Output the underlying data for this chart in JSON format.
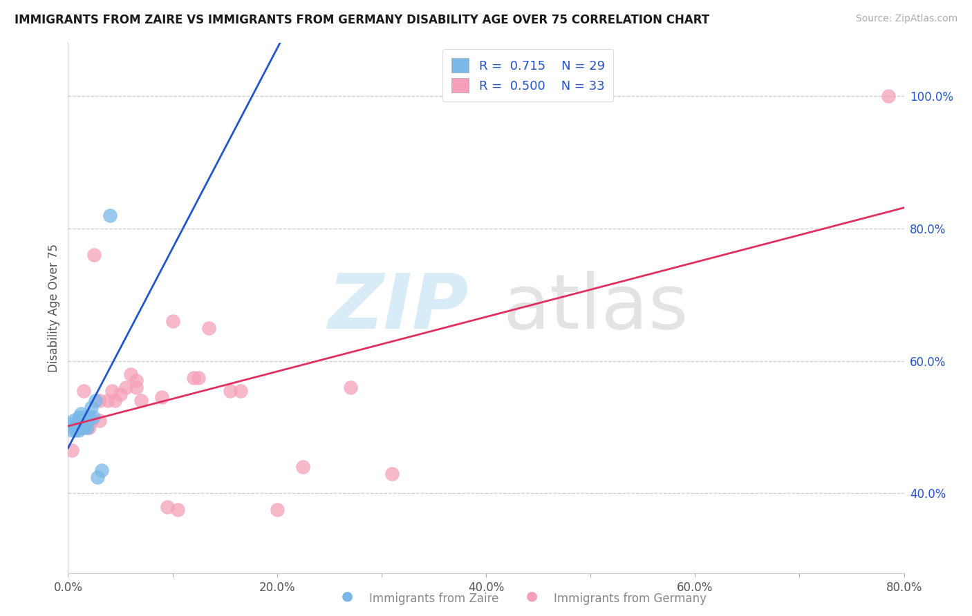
{
  "title": "IMMIGRANTS FROM ZAIRE VS IMMIGRANTS FROM GERMANY DISABILITY AGE OVER 75 CORRELATION CHART",
  "source": "Source: ZipAtlas.com",
  "ylabel": "Disability Age Over 75",
  "xmin": 0.0,
  "xmax": 0.8,
  "ymin": 0.28,
  "ymax": 1.08,
  "xtick_vals": [
    0.0,
    0.1,
    0.2,
    0.3,
    0.4,
    0.5,
    0.6,
    0.7,
    0.8
  ],
  "xtick_labels": [
    "0.0%",
    "",
    "20.0%",
    "",
    "40.0%",
    "",
    "60.0%",
    "",
    "80.0%"
  ],
  "ytick_vals": [
    0.4,
    0.6,
    0.8,
    1.0
  ],
  "ytick_labels": [
    "40.0%",
    "60.0%",
    "80.0%",
    "100.0%"
  ],
  "zaire_R": "0.715",
  "zaire_N": "29",
  "germany_R": "0.500",
  "germany_N": "33",
  "zaire_color": "#7ab8e8",
  "germany_color": "#f5a0b8",
  "zaire_line_color": "#2255cc",
  "germany_line_color": "#e03060",
  "zaire_x": [
    0.002,
    0.004,
    0.005,
    0.005,
    0.007,
    0.008,
    0.008,
    0.009,
    0.01,
    0.01,
    0.01,
    0.01,
    0.012,
    0.012,
    0.013,
    0.014,
    0.015,
    0.015,
    0.016,
    0.017,
    0.018,
    0.018,
    0.02,
    0.022,
    0.024,
    0.026,
    0.028,
    0.032,
    0.04
  ],
  "zaire_y": [
    0.505,
    0.495,
    0.5,
    0.51,
    0.495,
    0.5,
    0.505,
    0.5,
    0.495,
    0.5,
    0.51,
    0.515,
    0.505,
    0.52,
    0.5,
    0.51,
    0.515,
    0.5,
    0.505,
    0.51,
    0.5,
    0.51,
    0.515,
    0.53,
    0.515,
    0.54,
    0.425,
    0.435,
    0.82
  ],
  "germany_x": [
    0.004,
    0.01,
    0.012,
    0.015,
    0.018,
    0.02,
    0.022,
    0.025,
    0.03,
    0.03,
    0.038,
    0.042,
    0.045,
    0.05,
    0.055,
    0.06,
    0.065,
    0.065,
    0.07,
    0.09,
    0.095,
    0.1,
    0.105,
    0.12,
    0.125,
    0.135,
    0.155,
    0.165,
    0.2,
    0.225,
    0.27,
    0.31,
    0.785
  ],
  "germany_y": [
    0.465,
    0.5,
    0.51,
    0.555,
    0.5,
    0.5,
    0.51,
    0.76,
    0.51,
    0.54,
    0.54,
    0.555,
    0.54,
    0.55,
    0.56,
    0.58,
    0.56,
    0.57,
    0.54,
    0.545,
    0.38,
    0.66,
    0.375,
    0.575,
    0.575,
    0.65,
    0.555,
    0.555,
    0.375,
    0.44,
    0.56,
    0.43,
    1.0
  ],
  "bottom_label_zaire": "Immigrants from Zaire",
  "bottom_label_germany": "Immigrants from Germany"
}
